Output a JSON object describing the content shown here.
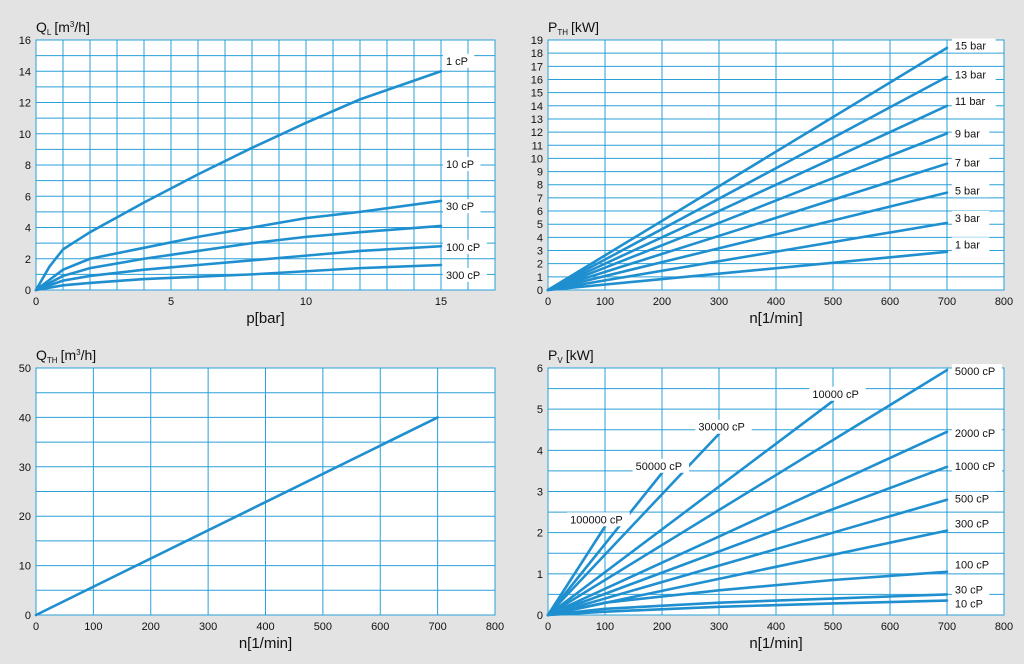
{
  "colors": {
    "background": "#e3e3e3",
    "plot": "#ffffff",
    "grid": "#2a9fd8",
    "line": "#1f8fcf",
    "text": "#111111"
  },
  "chart_data": [
    {
      "id": "ql",
      "type": "line",
      "title_main": "Q",
      "title_sub": "L",
      "title_unit": "[m",
      "title_sup": "3",
      "title_tail": "/h]",
      "xlabel": "p[bar]",
      "xlim": [
        0,
        17
      ],
      "ylim": [
        0,
        16
      ],
      "x_ticks": [
        0,
        5,
        10,
        15
      ],
      "y_ticks": [
        0,
        2,
        4,
        6,
        8,
        10,
        12,
        14,
        16
      ],
      "x_grid_step": 1,
      "y_grid_step": 1,
      "series": [
        {
          "name": "1 cP",
          "label": "1 cP",
          "points": [
            [
              0,
              0
            ],
            [
              0.5,
              1.5
            ],
            [
              1,
              2.6
            ],
            [
              2,
              3.7
            ],
            [
              4,
              5.6
            ],
            [
              6,
              7.4
            ],
            [
              8,
              9.1
            ],
            [
              10,
              10.7
            ],
            [
              12,
              12.2
            ],
            [
              14,
              13.4
            ],
            [
              15,
              14
            ]
          ]
        },
        {
          "name": "10 cP",
          "label": "10 cP",
          "points": [
            [
              0,
              0
            ],
            [
              1,
              1.3
            ],
            [
              2,
              2.0
            ],
            [
              4,
              2.7
            ],
            [
              6,
              3.4
            ],
            [
              8,
              4.0
            ],
            [
              10,
              4.6
            ],
            [
              12,
              5.0
            ],
            [
              15,
              5.7
            ]
          ]
        },
        {
          "name": "30 cP",
          "label": "30 cP",
          "points": [
            [
              0,
              0
            ],
            [
              1,
              0.9
            ],
            [
              2,
              1.4
            ],
            [
              4,
              2.0
            ],
            [
              6,
              2.5
            ],
            [
              8,
              3.0
            ],
            [
              10,
              3.4
            ],
            [
              12,
              3.7
            ],
            [
              15,
              4.1
            ]
          ]
        },
        {
          "name": "100 cP",
          "label": "100 cP",
          "points": [
            [
              0,
              0
            ],
            [
              1,
              0.6
            ],
            [
              2,
              0.9
            ],
            [
              4,
              1.3
            ],
            [
              6,
              1.6
            ],
            [
              8,
              1.9
            ],
            [
              10,
              2.2
            ],
            [
              12,
              2.5
            ],
            [
              15,
              2.8
            ]
          ]
        },
        {
          "name": "300 cP",
          "label": "300 cP",
          "points": [
            [
              0,
              0
            ],
            [
              1,
              0.3
            ],
            [
              2,
              0.45
            ],
            [
              4,
              0.7
            ],
            [
              6,
              0.85
            ],
            [
              8,
              1.0
            ],
            [
              10,
              1.2
            ],
            [
              12,
              1.4
            ],
            [
              15,
              1.6
            ]
          ]
        }
      ],
      "label_positions": [
        [
          15,
          14.6
        ],
        [
          15,
          8.0
        ],
        [
          15,
          5.3
        ],
        [
          15,
          2.7
        ],
        [
          15,
          0.9
        ]
      ]
    },
    {
      "id": "pth",
      "type": "line",
      "title_main": "P",
      "title_sub": "TH",
      "title_unit": "[kW]",
      "title_sup": "",
      "title_tail": "",
      "xlabel": "n[1/min]",
      "xlim": [
        0,
        800
      ],
      "ylim": [
        0,
        19
      ],
      "x_ticks": [
        0,
        100,
        200,
        300,
        400,
        500,
        600,
        700,
        800
      ],
      "y_ticks": [
        0,
        1,
        2,
        3,
        4,
        5,
        6,
        7,
        8,
        9,
        10,
        11,
        12,
        13,
        14,
        15,
        16,
        17,
        18,
        19
      ],
      "x_grid_step": 100,
      "y_grid_step": 1,
      "series": [
        {
          "name": "15 bar",
          "label": "15 bar",
          "points": [
            [
              0,
              0
            ],
            [
              700,
              18.4
            ]
          ]
        },
        {
          "name": "13 bar",
          "label": "13 bar",
          "points": [
            [
              0,
              0
            ],
            [
              700,
              16.2
            ]
          ]
        },
        {
          "name": "11 bar",
          "label": "11 bar",
          "points": [
            [
              0,
              0
            ],
            [
              700,
              14.0
            ]
          ]
        },
        {
          "name": "9 bar",
          "label": "9 bar",
          "points": [
            [
              0,
              0
            ],
            [
              700,
              11.9
            ]
          ]
        },
        {
          "name": "7 bar",
          "label": "7 bar",
          "points": [
            [
              0,
              0
            ],
            [
              700,
              9.6
            ]
          ]
        },
        {
          "name": "5 bar",
          "label": "5 bar",
          "points": [
            [
              0,
              0
            ],
            [
              700,
              7.4
            ]
          ]
        },
        {
          "name": "3 bar",
          "label": "3 bar",
          "points": [
            [
              0,
              0
            ],
            [
              700,
              5.1
            ]
          ]
        },
        {
          "name": "1 bar",
          "label": "1 bar",
          "points": [
            [
              0,
              0
            ],
            [
              700,
              2.9
            ]
          ]
        }
      ],
      "label_positions": [
        [
          705,
          18.5
        ],
        [
          705,
          16.3
        ],
        [
          705,
          14.3
        ],
        [
          705,
          11.8
        ],
        [
          705,
          9.6
        ],
        [
          705,
          7.5
        ],
        [
          705,
          5.4
        ],
        [
          705,
          3.4
        ]
      ]
    },
    {
      "id": "qth",
      "type": "line",
      "title_main": "Q",
      "title_sub": "TH",
      "title_unit": "[m",
      "title_sup": "3",
      "title_tail": "/h]",
      "xlabel": "n[1/min]",
      "xlim": [
        0,
        800
      ],
      "ylim": [
        0,
        50
      ],
      "x_ticks": [
        0,
        100,
        200,
        300,
        400,
        500,
        600,
        700,
        800
      ],
      "y_ticks": [
        0,
        10,
        20,
        30,
        40,
        50
      ],
      "x_grid_step": 100,
      "y_grid_step": 5,
      "series": [
        {
          "name": "Q_TH",
          "label": "",
          "points": [
            [
              0,
              0
            ],
            [
              700,
              40
            ]
          ]
        }
      ],
      "label_positions": []
    },
    {
      "id": "pv",
      "type": "line",
      "title_main": "P",
      "title_sub": "V",
      "title_unit": "[kW]",
      "title_sup": "",
      "title_tail": "",
      "xlabel": "n[1/min]",
      "xlim": [
        0,
        800
      ],
      "ylim": [
        0,
        6
      ],
      "x_ticks": [
        0,
        100,
        200,
        300,
        400,
        500,
        600,
        700,
        800
      ],
      "y_ticks": [
        0,
        1,
        2,
        3,
        4,
        5,
        6
      ],
      "x_grid_step": 100,
      "y_grid_step": 0.5,
      "series": [
        {
          "name": "100000 cP",
          "label": "100000 cP",
          "points": [
            [
              0,
              0
            ],
            [
              100,
              2.15
            ]
          ]
        },
        {
          "name": "50000 cP",
          "label": "50000 cP",
          "points": [
            [
              0,
              0
            ],
            [
              200,
              3.45
            ]
          ]
        },
        {
          "name": "30000 cP",
          "label": "30000 cP",
          "points": [
            [
              0,
              0
            ],
            [
              300,
              4.4
            ]
          ]
        },
        {
          "name": "10000 cP",
          "label": "10000 cP",
          "points": [
            [
              0,
              0
            ],
            [
              500,
              5.2
            ]
          ]
        },
        {
          "name": "5000 cP",
          "label": "5000 cP",
          "points": [
            [
              0,
              0
            ],
            [
              700,
              5.95
            ]
          ]
        },
        {
          "name": "2000 cP",
          "label": "2000 cP",
          "points": [
            [
              0,
              0
            ],
            [
              700,
              4.45
            ]
          ]
        },
        {
          "name": "1000 cP",
          "label": "1000 cP",
          "points": [
            [
              0,
              0
            ],
            [
              700,
              3.6
            ]
          ]
        },
        {
          "name": "500 cP",
          "label": "500 cP",
          "points": [
            [
              0,
              0
            ],
            [
              700,
              2.8
            ]
          ]
        },
        {
          "name": "300 cP",
          "label": "300 cP",
          "points": [
            [
              0,
              0
            ],
            [
              700,
              2.05
            ]
          ]
        },
        {
          "name": "100 cP",
          "label": "100 cP",
          "points": [
            [
              0,
              0
            ],
            [
              100,
              0.3
            ],
            [
              300,
              0.6
            ],
            [
              500,
              0.85
            ],
            [
              700,
              1.05
            ]
          ]
        },
        {
          "name": "30 cP",
          "label": "30 cP",
          "points": [
            [
              0,
              0
            ],
            [
              100,
              0.15
            ],
            [
              300,
              0.3
            ],
            [
              500,
              0.4
            ],
            [
              700,
              0.5
            ]
          ]
        },
        {
          "name": "10 cP",
          "label": "10 cP",
          "points": [
            [
              0,
              0
            ],
            [
              100,
              0.08
            ],
            [
              300,
              0.2
            ],
            [
              500,
              0.28
            ],
            [
              700,
              0.35
            ]
          ]
        }
      ],
      "label_positions": [
        [
          30,
          2.3
        ],
        [
          145,
          3.6
        ],
        [
          255,
          4.55
        ],
        [
          455,
          5.35
        ],
        [
          705,
          5.9
        ],
        [
          705,
          4.4
        ],
        [
          705,
          3.6
        ],
        [
          705,
          2.8
        ],
        [
          705,
          2.2
        ],
        [
          705,
          1.2
        ],
        [
          705,
          0.6
        ],
        [
          705,
          0.25
        ]
      ]
    }
  ]
}
